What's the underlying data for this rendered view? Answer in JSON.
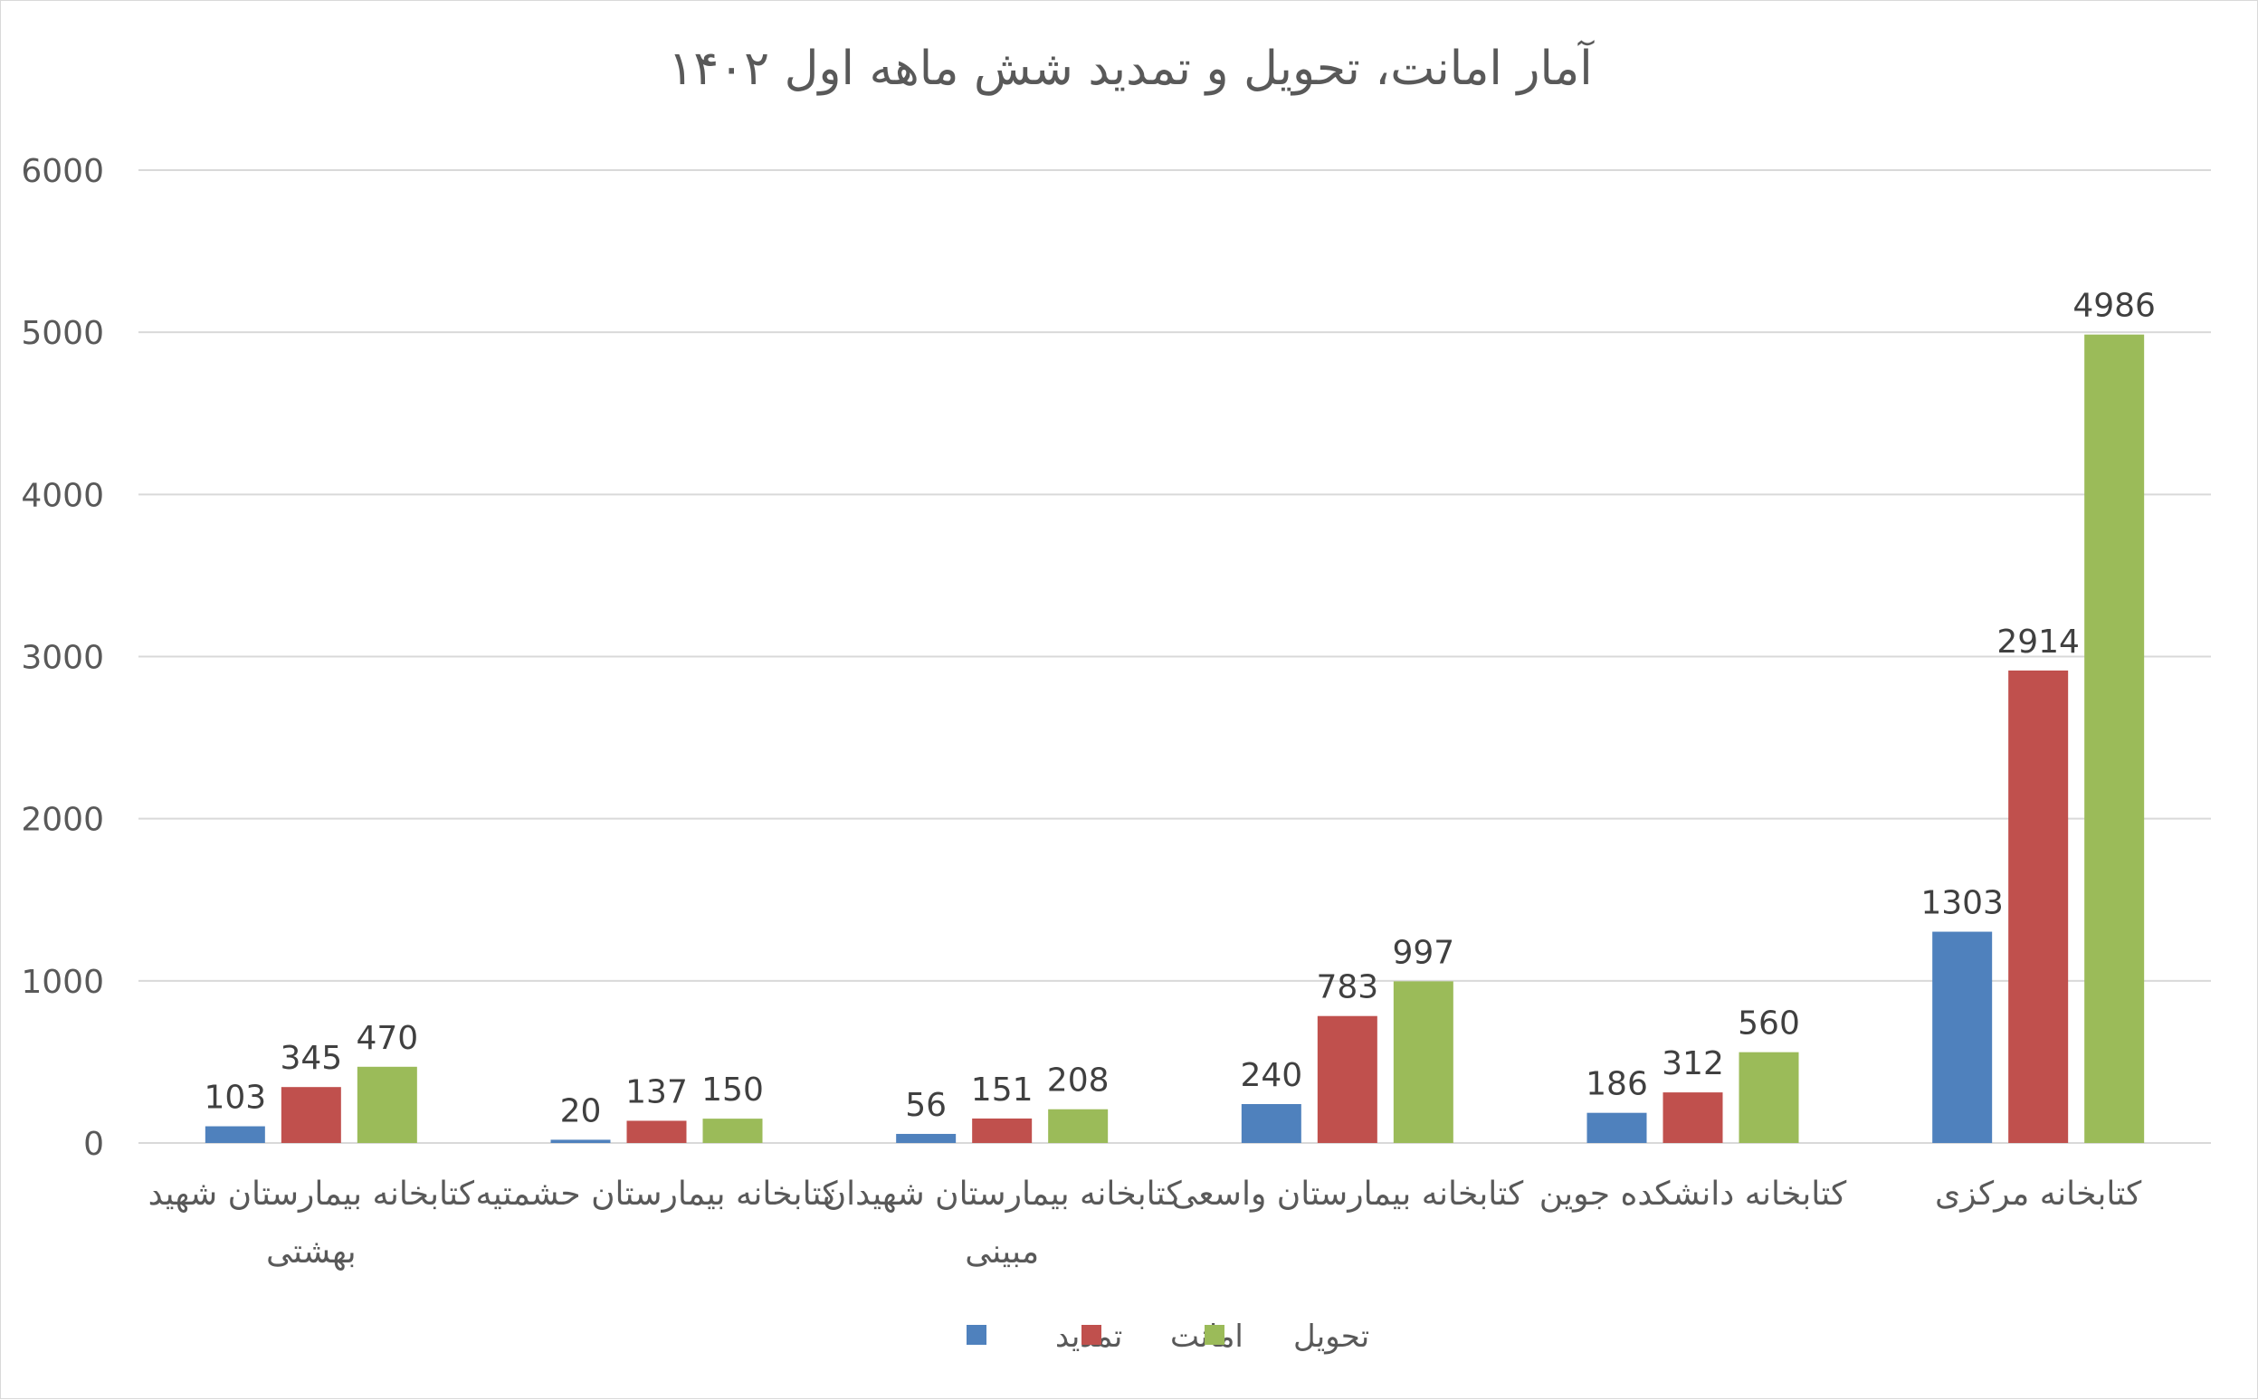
{
  "chart_data": {
    "type": "bar",
    "title": "آمار امانت، تحویل و تمدید شش ماهه اول ۱۴۰۲",
    "categories": [
      [
        "کتابخانه بیمارستان شهید",
        "بهشتی"
      ],
      [
        "کتابخانه بیمارستان حشمتیه"
      ],
      [
        "کتابخانه بیمارستان شهیدان",
        "مبینی"
      ],
      [
        "کتابخانه بیمارستان واسعی"
      ],
      [
        "کتابخانه دانشکده جوین"
      ],
      [
        "کتابخانه مرکزی"
      ]
    ],
    "series": [
      {
        "name": "تمدید",
        "color": "#4f81bd",
        "values": [
          103,
          20,
          56,
          240,
          186,
          1303
        ]
      },
      {
        "name": "امانت",
        "color": "#c0504d",
        "values": [
          345,
          137,
          151,
          783,
          312,
          2914
        ]
      },
      {
        "name": "تحویل",
        "color": "#9bbb59",
        "values": [
          470,
          150,
          208,
          997,
          560,
          4986
        ]
      }
    ],
    "ylim": [
      0,
      6000
    ],
    "yticks": [
      0,
      1000,
      2000,
      3000,
      4000,
      5000,
      6000
    ],
    "grid": true,
    "data_labels": true,
    "legend_position": "bottom"
  }
}
